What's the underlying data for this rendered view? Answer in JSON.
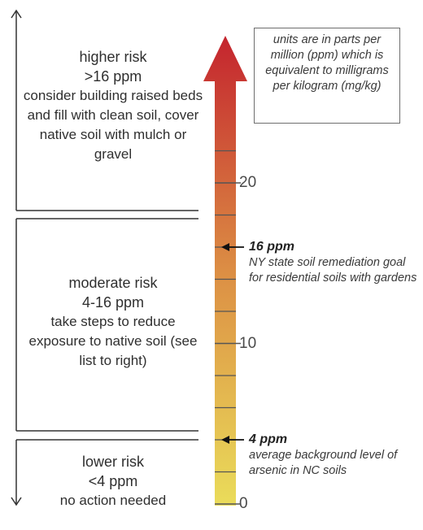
{
  "zones": {
    "higher": {
      "title": "higher risk",
      "range": ">16 ppm",
      "description": "consider building raised beds and fill with clean soil, cover native soil with mulch or gravel"
    },
    "moderate": {
      "title": "moderate risk",
      "range": "4-16 ppm",
      "description": "take steps to reduce exposure to native soil (see list to right)"
    },
    "lower": {
      "title": "lower risk",
      "range": "<4 ppm",
      "description": "no action needed"
    }
  },
  "units_note": "units are in parts per million (ppm) which is equivalent to milligrams per kilogram (mg/kg)",
  "scale": {
    "min": 0,
    "max": 24,
    "labels": [
      "0",
      "10",
      "20"
    ],
    "label_values": [
      0,
      10,
      20
    ],
    "minor_tick_values": [
      2,
      4,
      6,
      8,
      12,
      14,
      16,
      18,
      22
    ],
    "gradient_colors": {
      "bottom": "#eadc5a",
      "middle": "#dc8e44",
      "top": "#c4242e"
    },
    "tick_color": "#555555"
  },
  "markers": [
    {
      "value": 16,
      "label": "16 ppm",
      "note": "NY state soil remediation goal for residential soils with gardens"
    },
    {
      "value": 4,
      "label": "4 ppm",
      "note": "average background level of arsenic in NC soils"
    }
  ]
}
